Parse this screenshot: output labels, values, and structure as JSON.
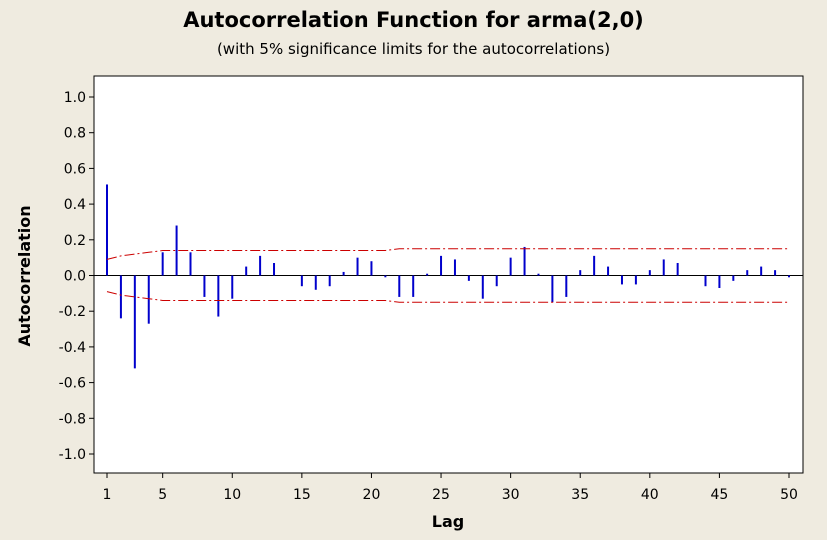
{
  "chart_data": {
    "type": "bar",
    "title": "Autocorrelation Function for arma(2,0)",
    "subtitle": "(with 5% significance limits for the autocorrelations)",
    "xlabel": "Lag",
    "ylabel": "Autocorrelation",
    "xlim": [
      1,
      50
    ],
    "ylim": [
      -1.0,
      1.0
    ],
    "x_ticks": [
      1,
      5,
      10,
      15,
      20,
      25,
      30,
      35,
      40,
      45,
      50
    ],
    "y_ticks": [
      "1.0",
      "0.8",
      "0.6",
      "0.4",
      "0.2",
      "0.0",
      "-0.2",
      "-0.4",
      "-0.6",
      "-0.8",
      "-1.0"
    ],
    "lags": [
      1,
      2,
      3,
      4,
      5,
      6,
      7,
      8,
      9,
      10,
      11,
      12,
      13,
      14,
      15,
      16,
      17,
      18,
      19,
      20,
      21,
      22,
      23,
      24,
      25,
      26,
      27,
      28,
      29,
      30,
      31,
      32,
      33,
      34,
      35,
      36,
      37,
      38,
      39,
      40,
      41,
      42,
      43,
      44,
      45,
      46,
      47,
      48,
      49,
      50
    ],
    "values": [
      0.51,
      -0.24,
      -0.52,
      -0.27,
      0.13,
      0.28,
      0.13,
      -0.12,
      -0.23,
      -0.13,
      0.05,
      0.11,
      0.07,
      0.0,
      -0.06,
      -0.08,
      -0.06,
      0.02,
      0.1,
      0.08,
      -0.01,
      -0.12,
      -0.12,
      0.01,
      0.11,
      0.09,
      -0.03,
      -0.13,
      -0.06,
      0.1,
      0.16,
      0.01,
      -0.15,
      -0.12,
      0.03,
      0.11,
      0.05,
      -0.05,
      -0.05,
      0.03,
      0.09,
      0.07,
      0.0,
      -0.06,
      -0.07,
      -0.03,
      0.03,
      0.05,
      0.03,
      -0.01
    ],
    "significance_upper": [
      0.09,
      0.11,
      0.12,
      0.13,
      0.14,
      0.14,
      0.14,
      0.14,
      0.14,
      0.14,
      0.14,
      0.14,
      0.14,
      0.14,
      0.14,
      0.14,
      0.14,
      0.14,
      0.14,
      0.14,
      0.14,
      0.15,
      0.15,
      0.15,
      0.15,
      0.15,
      0.15,
      0.15,
      0.15,
      0.15,
      0.15,
      0.15,
      0.15,
      0.15,
      0.15,
      0.15,
      0.15,
      0.15,
      0.15,
      0.15,
      0.15,
      0.15,
      0.15,
      0.15,
      0.15,
      0.15,
      0.15,
      0.15,
      0.15,
      0.15
    ],
    "significance_lower": [
      -0.09,
      -0.11,
      -0.12,
      -0.13,
      -0.14,
      -0.14,
      -0.14,
      -0.14,
      -0.14,
      -0.14,
      -0.14,
      -0.14,
      -0.14,
      -0.14,
      -0.14,
      -0.14,
      -0.14,
      -0.14,
      -0.14,
      -0.14,
      -0.14,
      -0.15,
      -0.15,
      -0.15,
      -0.15,
      -0.15,
      -0.15,
      -0.15,
      -0.15,
      -0.15,
      -0.15,
      -0.15,
      -0.15,
      -0.15,
      -0.15,
      -0.15,
      -0.15,
      -0.15,
      -0.15,
      -0.15,
      -0.15,
      -0.15,
      -0.15,
      -0.15,
      -0.15,
      -0.15,
      -0.15,
      -0.15,
      -0.15,
      -0.15
    ],
    "grid": false,
    "colors": {
      "bars": "#0000cc",
      "limits": "#cc0000",
      "plot_background": "#ffffff",
      "figure_background": "#efebe0"
    }
  }
}
